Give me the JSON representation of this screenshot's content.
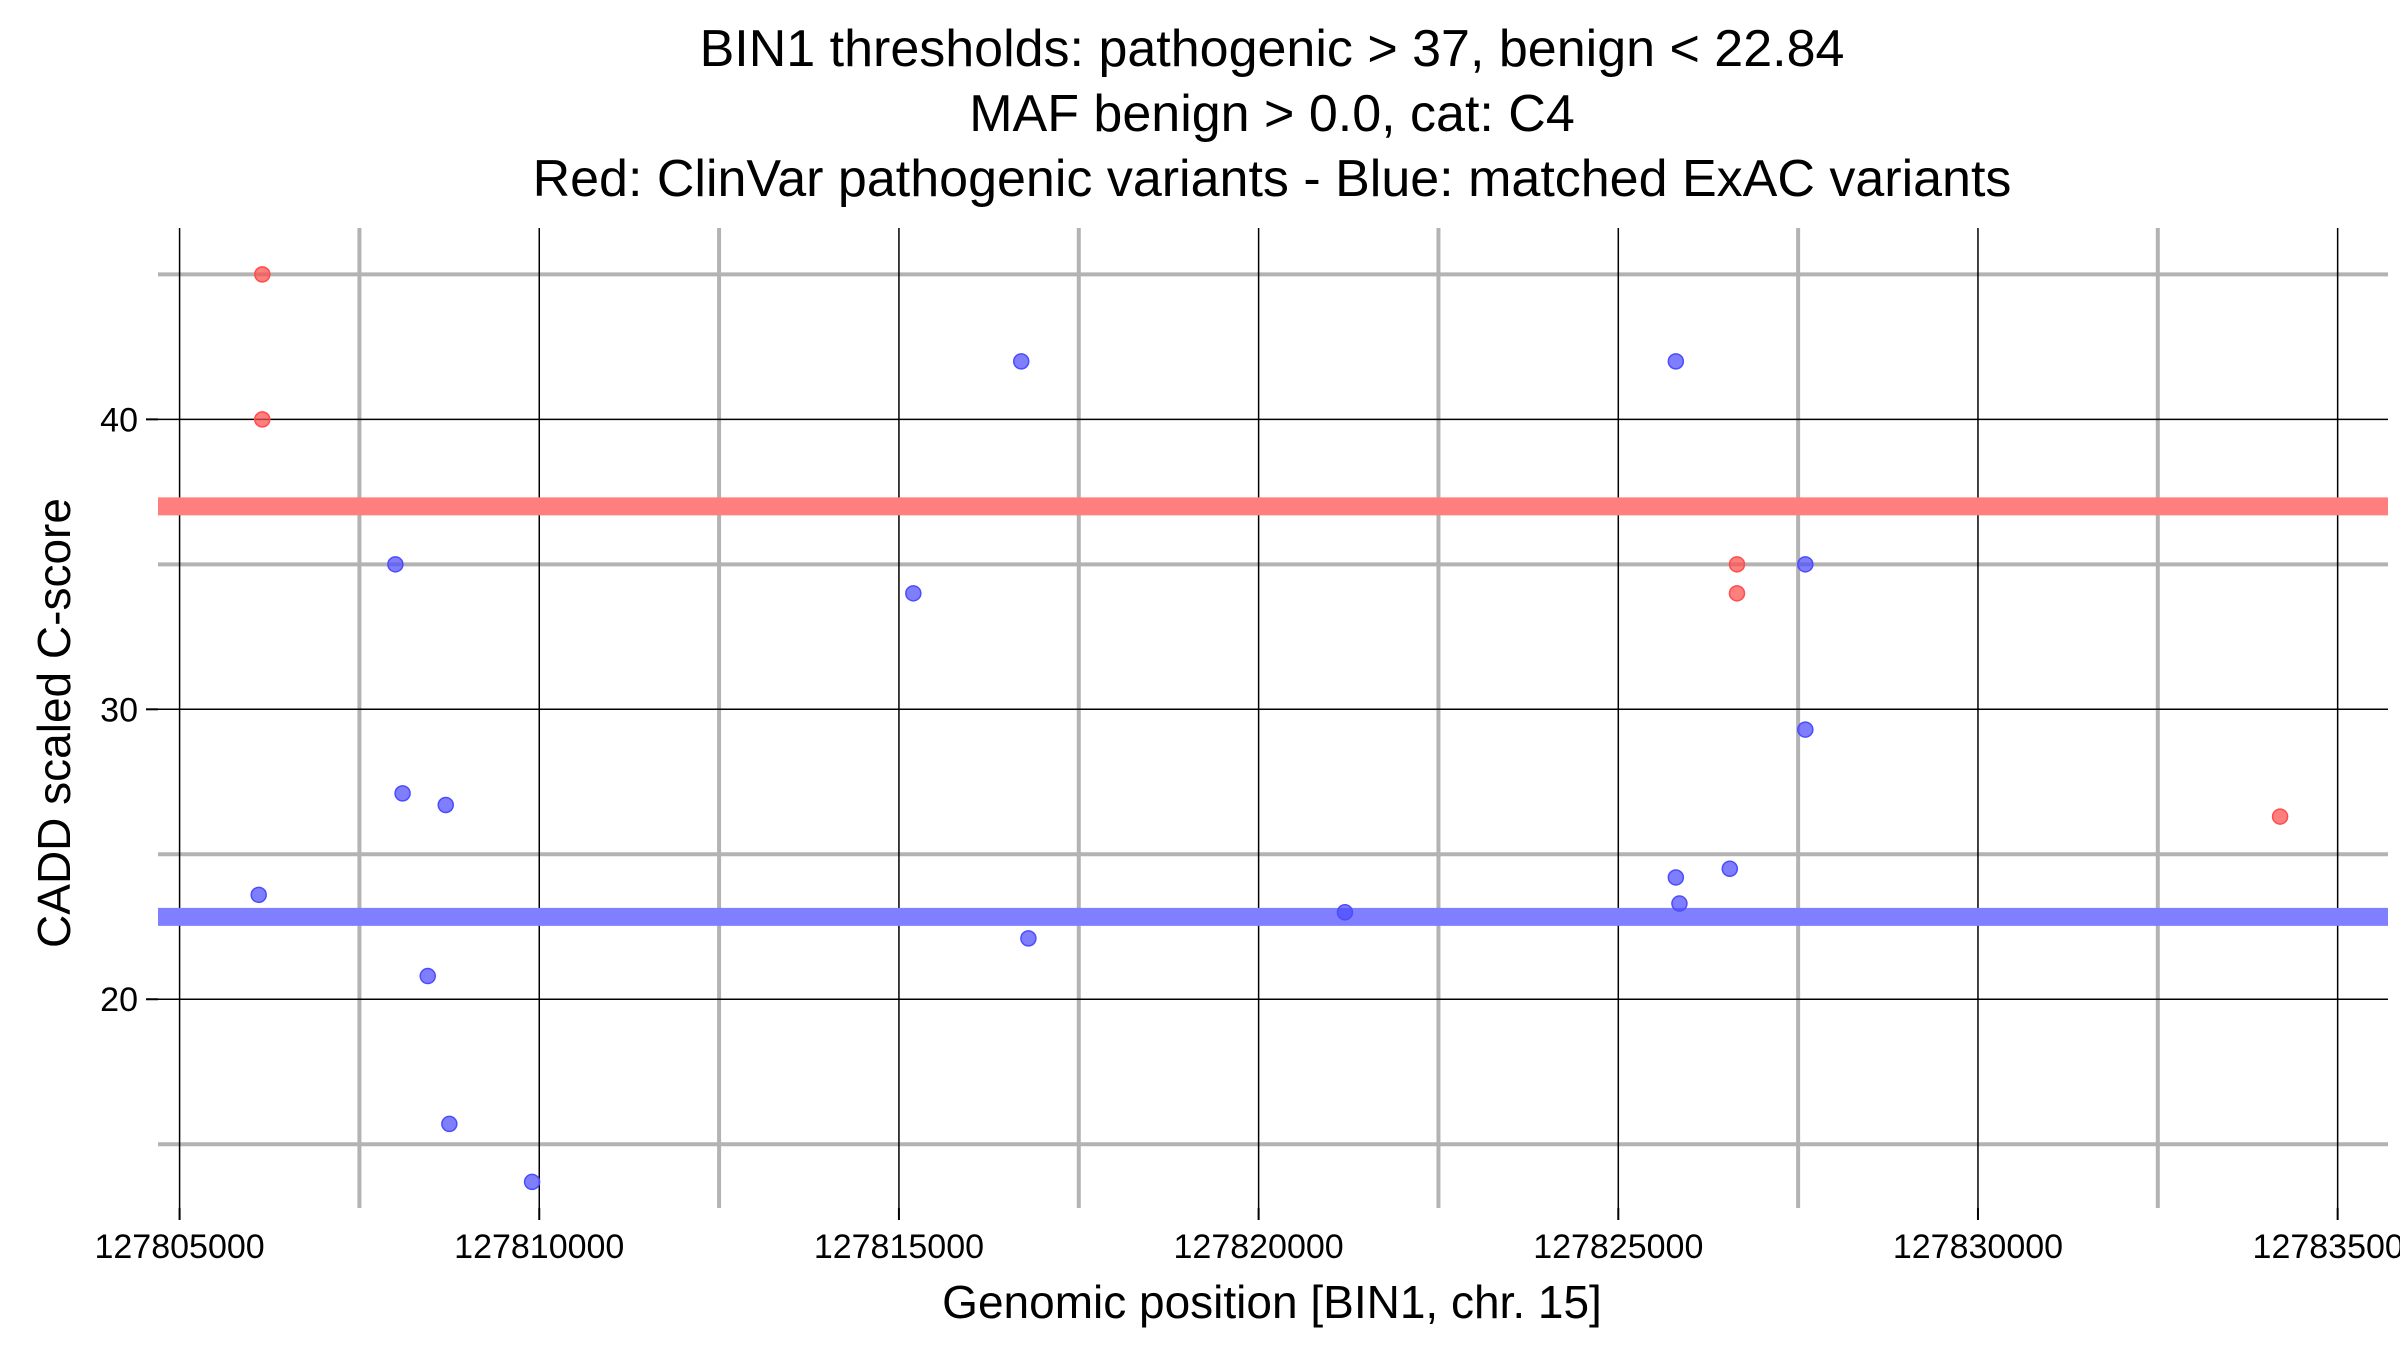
{
  "chart_data": {
    "type": "scatter",
    "title_lines": [
      "BIN1 thresholds: pathogenic > 37, benign < 22.84",
      "MAF benign > 0.0, cat: C4",
      "Red: ClinVar pathogenic variants - Blue: matched ExAC variants"
    ],
    "xlabel": "Genomic position [BIN1, chr. 15]",
    "ylabel": "CADD scaled C-score",
    "xlim": [
      127804700,
      127835700
    ],
    "ylim": [
      12.8,
      46.6
    ],
    "x_major_ticks": [
      127805000,
      127810000,
      127815000,
      127820000,
      127825000,
      127830000,
      127835000
    ],
    "x_tick_labels": [
      "127805000",
      "127810000",
      "127815000",
      "127820000",
      "127825000",
      "127830000",
      "127835000"
    ],
    "x_minor_gridlines": [
      127807500,
      127812500,
      127817500,
      127822500,
      127827500,
      127832500
    ],
    "y_major_ticks": [
      20,
      30,
      40
    ],
    "y_tick_labels": [
      "20",
      "30",
      "40"
    ],
    "y_minor_gridlines": [
      15,
      25,
      35,
      45
    ],
    "grid": true,
    "thresholds": [
      {
        "name": "pathogenic",
        "value": 37,
        "color": "#ff7f7f"
      },
      {
        "name": "benign",
        "value": 22.84,
        "color": "#7f7fff"
      }
    ],
    "series": [
      {
        "name": "ClinVar pathogenic variants",
        "color": "#ff4c4c",
        "points": [
          {
            "x": 127806150,
            "y": 45.0
          },
          {
            "x": 127806150,
            "y": 40.0
          },
          {
            "x": 127826650,
            "y": 35.0
          },
          {
            "x": 127826650,
            "y": 34.0
          },
          {
            "x": 127834200,
            "y": 26.3
          }
        ]
      },
      {
        "name": "matched ExAC variants",
        "color": "#4c4cff",
        "points": [
          {
            "x": 127806100,
            "y": 23.6
          },
          {
            "x": 127808000,
            "y": 35.0
          },
          {
            "x": 127808100,
            "y": 27.1
          },
          {
            "x": 127808700,
            "y": 26.7
          },
          {
            "x": 127808450,
            "y": 20.8
          },
          {
            "x": 127808750,
            "y": 15.7
          },
          {
            "x": 127809900,
            "y": 13.7
          },
          {
            "x": 127815200,
            "y": 34.0
          },
          {
            "x": 127816700,
            "y": 42.0
          },
          {
            "x": 127816800,
            "y": 22.1
          },
          {
            "x": 127821200,
            "y": 23.0
          },
          {
            "x": 127825800,
            "y": 42.0
          },
          {
            "x": 127825800,
            "y": 24.2
          },
          {
            "x": 127825850,
            "y": 23.3
          },
          {
            "x": 127826550,
            "y": 24.5
          },
          {
            "x": 127827600,
            "y": 35.0
          },
          {
            "x": 127827600,
            "y": 29.3
          }
        ]
      }
    ]
  }
}
